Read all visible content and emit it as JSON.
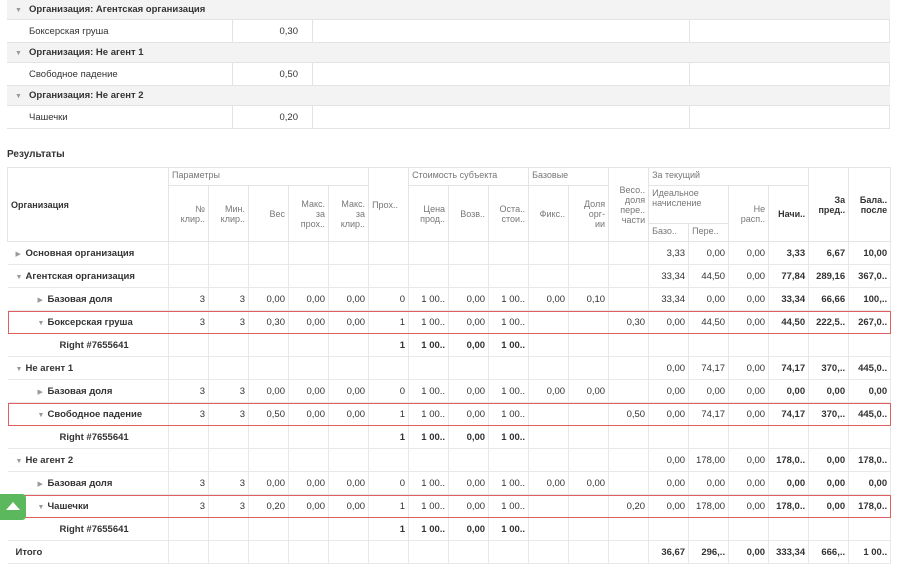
{
  "groups": [
    {
      "title": "Организация: Агентская организация",
      "items": [
        {
          "name": "Боксерская груша",
          "value": "0,30"
        }
      ]
    },
    {
      "title": "Организация: Не агент 1",
      "items": [
        {
          "name": "Свободное падение",
          "value": "0,50"
        }
      ]
    },
    {
      "title": "Организация: Не агент 2",
      "items": [
        {
          "name": "Чашечки",
          "value": "0,20"
        }
      ]
    }
  ],
  "results": {
    "title": "Результаты",
    "header": {
      "organization": "Организация",
      "parameters": "Параметры",
      "passes": "Прох..",
      "subject_cost": "Стоимость субъекта",
      "basic": "Базовые",
      "weight_share": "Весо..\nдоля\nпере..\nчасти",
      "current": "За текущий",
      "previous": "За\nпред..",
      "balance": "Бала..\nпосле",
      "clearance_no": "№\nклир..",
      "min_clearance": "Мин.\nклир..",
      "weight": "Вес",
      "max_per_pass": "Макс.\nза\nпрох..",
      "max_per_clearance": "Макс.\nза\nклир..",
      "sale_price": "Цена\nпрод..",
      "refund": "Возв..",
      "residual": "Оста..\nстои..",
      "fixed": "Фикс..",
      "org_share": "Доля\nорг-\nии",
      "ideal": "Идеальное\nначисление",
      "unallocated": "Не\nрасп..",
      "accrued": "Начи..",
      "ideal_base": "Базо..",
      "ideal_transfer": "Пере.."
    },
    "rows": [
      {
        "name": "Основная организация",
        "state": "collapsed",
        "cells": [
          null,
          null,
          null,
          null,
          null,
          null,
          null,
          null,
          null,
          null,
          null,
          null,
          "3,33",
          "0,00",
          "0,00",
          "3,33",
          "6,67",
          "10,00"
        ]
      },
      {
        "name": "Агентская организация",
        "state": "expanded",
        "cells": [
          null,
          null,
          null,
          null,
          null,
          null,
          null,
          null,
          null,
          null,
          null,
          null,
          "33,34",
          "44,50",
          "0,00",
          "77,84",
          "289,16",
          "367,0.."
        ],
        "children": [
          {
            "name": "Базовая доля",
            "state": "collapsed",
            "cells": [
              "3",
              "3",
              "0,00",
              "0,00",
              "0,00",
              "0",
              "1 00..",
              "0,00",
              "1 00..",
              "0,00",
              "0,10",
              null,
              "33,34",
              "0,00",
              "0,00",
              "33,34",
              "66,66",
              "100,.."
            ]
          },
          {
            "name": "Боксерская груша",
            "state": "expanded",
            "highlighted": true,
            "cells": [
              "3",
              "3",
              "0,30",
              "0,00",
              "0,00",
              "1",
              "1 00..",
              "0,00",
              "1 00..",
              null,
              null,
              "0,30",
              "0,00",
              "44,50",
              "0,00",
              "44,50",
              "222,5..",
              "267,0.."
            ],
            "children": [
              {
                "name": "Right #7655641",
                "bold": true,
                "cells": [
                  null,
                  null,
                  null,
                  null,
                  null,
                  "1",
                  "1 00..",
                  "0,00",
                  "1 00..",
                  null,
                  null,
                  null,
                  null,
                  null,
                  null,
                  null,
                  null,
                  null
                ]
              }
            ]
          }
        ]
      },
      {
        "name": "Не агент 1",
        "state": "expanded",
        "cells": [
          null,
          null,
          null,
          null,
          null,
          null,
          null,
          null,
          null,
          null,
          null,
          null,
          "0,00",
          "74,17",
          "0,00",
          "74,17",
          "370,..",
          "445,0.."
        ],
        "children": [
          {
            "name": "Базовая доля",
            "state": "collapsed",
            "cells": [
              "3",
              "3",
              "0,00",
              "0,00",
              "0,00",
              "0",
              "1 00..",
              "0,00",
              "1 00..",
              "0,00",
              "0,00",
              null,
              "0,00",
              "0,00",
              "0,00",
              "0,00",
              "0,00",
              "0,00"
            ]
          },
          {
            "name": "Свободное падение",
            "state": "expanded",
            "highlighted": true,
            "cells": [
              "3",
              "3",
              "0,50",
              "0,00",
              "0,00",
              "1",
              "1 00..",
              "0,00",
              "1 00..",
              null,
              null,
              "0,50",
              "0,00",
              "74,17",
              "0,00",
              "74,17",
              "370,..",
              "445,0.."
            ],
            "children": [
              {
                "name": "Right #7655641",
                "bold": true,
                "cells": [
                  null,
                  null,
                  null,
                  null,
                  null,
                  "1",
                  "1 00..",
                  "0,00",
                  "1 00..",
                  null,
                  null,
                  null,
                  null,
                  null,
                  null,
                  null,
                  null,
                  null
                ]
              }
            ]
          }
        ]
      },
      {
        "name": "Не агент 2",
        "state": "expanded",
        "cells": [
          null,
          null,
          null,
          null,
          null,
          null,
          null,
          null,
          null,
          null,
          null,
          null,
          "0,00",
          "178,00",
          "0,00",
          "178,0..",
          "0,00",
          "178,0.."
        ],
        "children": [
          {
            "name": "Базовая доля",
            "state": "collapsed",
            "cells": [
              "3",
              "3",
              "0,00",
              "0,00",
              "0,00",
              "0",
              "1 00..",
              "0,00",
              "1 00..",
              "0,00",
              "0,00",
              null,
              "0,00",
              "0,00",
              "0,00",
              "0,00",
              "0,00",
              "0,00"
            ]
          },
          {
            "name": "Чашечки",
            "state": "expanded",
            "highlighted": true,
            "cells": [
              "3",
              "3",
              "0,20",
              "0,00",
              "0,00",
              "1",
              "1 00..",
              "0,00",
              "1 00..",
              null,
              null,
              "0,20",
              "0,00",
              "178,00",
              "0,00",
              "178,0..",
              "0,00",
              "178,0.."
            ],
            "children": [
              {
                "name": "Right #7655641",
                "bold": true,
                "cells": [
                  null,
                  null,
                  null,
                  null,
                  null,
                  "1",
                  "1 00..",
                  "0,00",
                  "1 00..",
                  null,
                  null,
                  null,
                  null,
                  null,
                  null,
                  null,
                  null,
                  null
                ]
              }
            ]
          }
        ]
      },
      {
        "name": "Итого",
        "bold": true,
        "cells": [
          null,
          null,
          null,
          null,
          null,
          null,
          null,
          null,
          null,
          null,
          null,
          null,
          "36,67",
          "296,..",
          "0,00",
          "333,34",
          "666,..",
          "1 00.."
        ]
      }
    ]
  }
}
